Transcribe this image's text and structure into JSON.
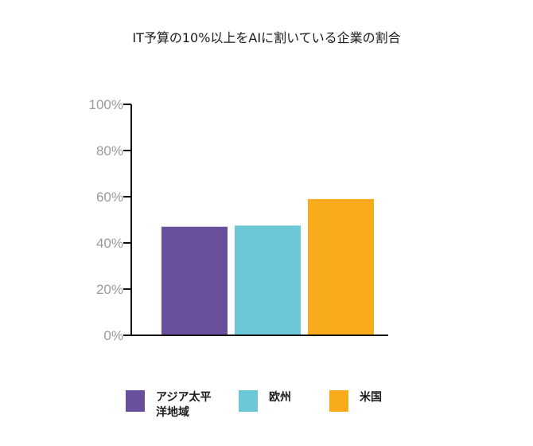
{
  "chart_data": {
    "type": "bar",
    "title": "IT予算の10%以上をAIに割いている企業の割合",
    "categories": [
      "アジア太平洋地域",
      "欧州",
      "米国"
    ],
    "values": [
      47,
      47.5,
      59
    ],
    "colors": [
      "#6a4f9c",
      "#6cc7d6",
      "#f8ab1d"
    ],
    "ylim": [
      0,
      100
    ],
    "yticks": [
      "0%",
      "20%",
      "40%",
      "60%",
      "80%",
      "100%"
    ],
    "xlabel": "",
    "ylabel": "",
    "grid": false,
    "legend": "bottom"
  }
}
